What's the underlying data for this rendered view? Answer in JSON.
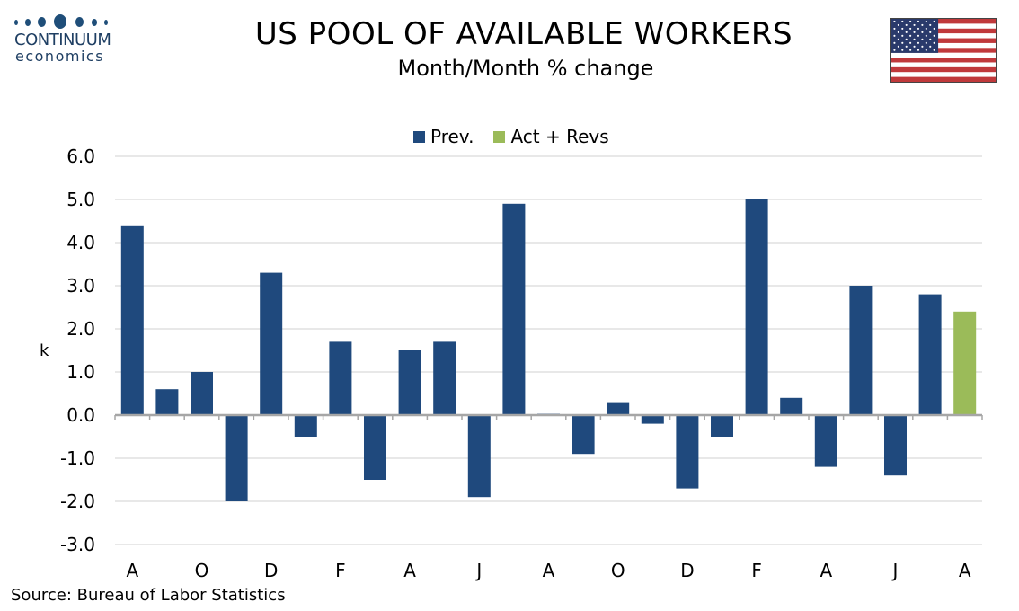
{
  "logo": {
    "name": "CONTINUUM",
    "sub": "economics",
    "color": "#1f4e79"
  },
  "header": {
    "title": "US POOL OF AVAILABLE WORKERS",
    "subtitle": "Month/Month % change"
  },
  "flag": {
    "icon": "us-flag-icon",
    "red": "#c0393b",
    "blue": "#2a3a6b"
  },
  "source": "Source: Bureau of Labor Statistics",
  "chart_data": {
    "type": "bar",
    "title": "US POOL OF AVAILABLE WORKERS",
    "subtitle": "Month/Month % change",
    "xlabel": "",
    "ylabel": "k",
    "ylim": [
      -3.0,
      6.0
    ],
    "yticks": [
      "6.0",
      "5.0",
      "4.0",
      "3.0",
      "2.0",
      "1.0",
      "0.0",
      "-1.0",
      "-2.0",
      "-3.0"
    ],
    "ytick_values": [
      6,
      5,
      4,
      3,
      2,
      1,
      0,
      -1,
      -2,
      -3
    ],
    "grid": true,
    "legend_position": "top-center",
    "xtick_labels": [
      {
        "index": 0,
        "label": "A"
      },
      {
        "index": 2,
        "label": "O"
      },
      {
        "index": 4,
        "label": "D"
      },
      {
        "index": 6,
        "label": "F"
      },
      {
        "index": 8,
        "label": "A"
      },
      {
        "index": 10,
        "label": "J"
      },
      {
        "index": 12,
        "label": "A"
      },
      {
        "index": 14,
        "label": "O"
      },
      {
        "index": 16,
        "label": "D"
      },
      {
        "index": 18,
        "label": "F"
      },
      {
        "index": 20,
        "label": "A"
      },
      {
        "index": 22,
        "label": "J"
      },
      {
        "index": 24,
        "label": "A"
      }
    ],
    "series": [
      {
        "name": "Prev.",
        "color": "#1f497d",
        "values": [
          4.4,
          0.6,
          1.0,
          -2.0,
          3.3,
          -0.5,
          1.7,
          -1.5,
          1.5,
          1.7,
          -1.9,
          4.9,
          0.03,
          -0.9,
          0.3,
          -0.2,
          -1.7,
          -0.5,
          5.0,
          0.4,
          -1.2,
          3.0,
          -1.4,
          2.8,
          null
        ]
      },
      {
        "name": "Act + Revs",
        "color": "#9bbb59",
        "values": [
          null,
          null,
          null,
          null,
          null,
          null,
          null,
          null,
          null,
          null,
          null,
          null,
          null,
          null,
          null,
          null,
          null,
          null,
          null,
          null,
          null,
          null,
          null,
          null,
          2.4
        ]
      }
    ]
  }
}
